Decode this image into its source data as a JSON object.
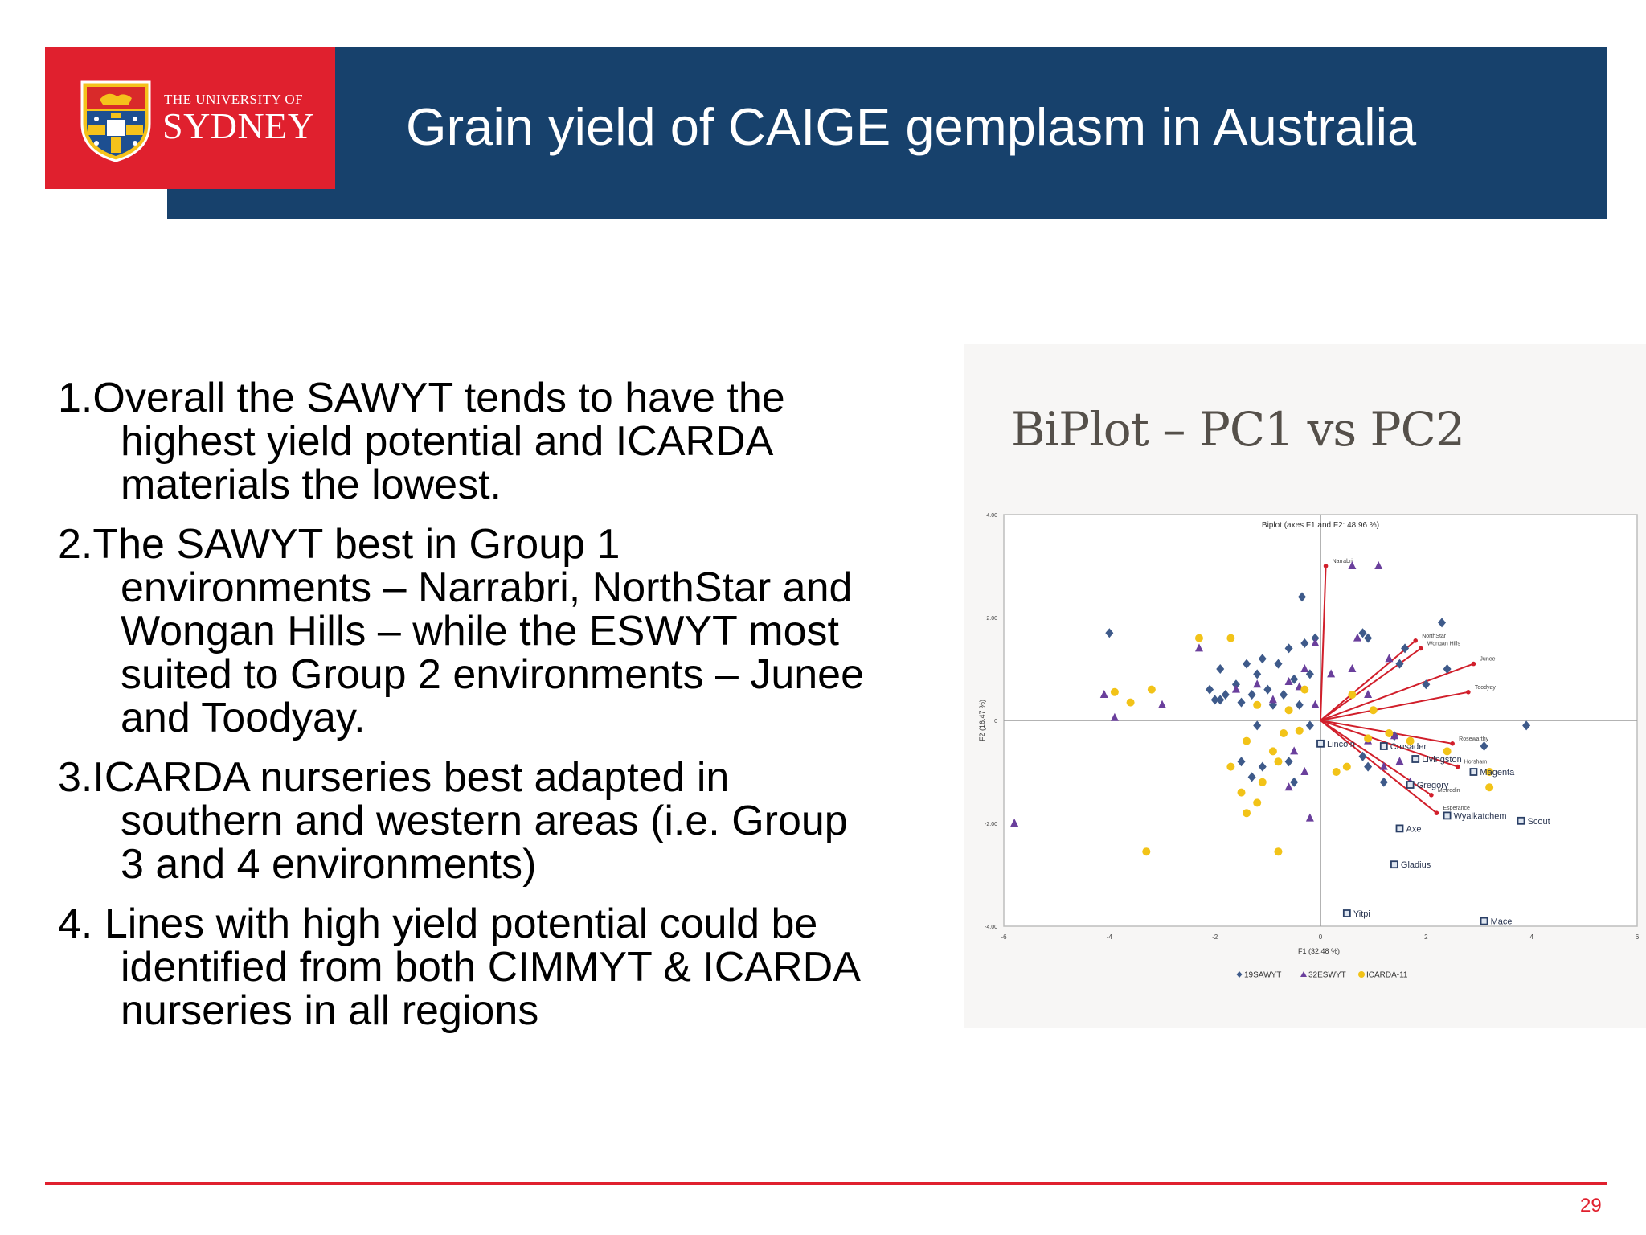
{
  "header": {
    "title": "Grain yield of CAIGE gemplasm in Australia",
    "logo_line1": "THE UNIVERSITY OF",
    "logo_line2": "SYDNEY"
  },
  "bullets": [
    "1.Overall the SAWYT tends to have the highest yield potential and  ICARDA materials the lowest.",
    "2.The SAWYT best in Group 1 environments – Narrabri, NorthStar and Wongan Hills – while the ESWYT most suited to Group 2 environments – Junee and Toodyay.",
    "3.ICARDA nurseries best adapted in southern and western areas (i.e. Group 3 and 4 environments)",
    "4. Lines with high yield potential could be identified from both CIMMYT & ICARDA nurseries in all regions"
  ],
  "chart_heading": "BiPlot – PC1 vs PC2",
  "chart_data": {
    "type": "scatter",
    "title": "Biplot (axes F1 and F2: 48.96 %)",
    "xlabel": "F1 (32.48 %)",
    "ylabel": "F2 (16.47 %)",
    "xlim": [
      -6,
      6
    ],
    "ylim": [
      -4,
      4
    ],
    "x_ticks": [
      "-6",
      "-4",
      "-2",
      "0",
      "2",
      "4",
      "6"
    ],
    "y_ticks": [
      "4.00",
      "2.00",
      "0",
      "-2.00",
      "-4.00"
    ],
    "legend": {
      "position": "bottom",
      "entries": [
        "19SAWYT",
        "32ESWYT",
        "ICARDA-11"
      ]
    },
    "series_style": [
      {
        "label": "19SAWYT",
        "marker": "diamond",
        "color": "#3e5a8a"
      },
      {
        "label": "32ESWYT",
        "marker": "triangle",
        "color": "#6a3f9c"
      },
      {
        "label": "ICARDA-11",
        "marker": "circle",
        "color": "#f2c318"
      }
    ],
    "series": [
      {
        "name": "19SAWYT",
        "points": [
          [
            -4,
            1.7
          ],
          [
            -2.1,
            0.6
          ],
          [
            -2,
            0.4
          ],
          [
            -1.9,
            1.0
          ],
          [
            -1.8,
            0.5
          ],
          [
            -1.6,
            0.7
          ],
          [
            -1.5,
            0.35
          ],
          [
            -1.4,
            1.1
          ],
          [
            -1.3,
            0.5
          ],
          [
            -1.2,
            0.9
          ],
          [
            -1.1,
            1.2
          ],
          [
            -1,
            0.6
          ],
          [
            -0.9,
            0.3
          ],
          [
            -0.8,
            1.1
          ],
          [
            -0.7,
            0.5
          ],
          [
            -0.6,
            1.4
          ],
          [
            -0.5,
            0.8
          ],
          [
            -0.4,
            0.3
          ],
          [
            -0.3,
            1.5
          ],
          [
            -0.2,
            0.9
          ],
          [
            -0.35,
            2.4
          ],
          [
            -0.1,
            1.6
          ],
          [
            -0.2,
            -0.1
          ],
          [
            -0.6,
            -0.8
          ],
          [
            -0.5,
            -1.2
          ],
          [
            -1.1,
            -0.9
          ],
          [
            -1.2,
            -0.1
          ],
          [
            -1.3,
            -1.1
          ],
          [
            -1.5,
            -0.8
          ],
          [
            -1.9,
            0.4
          ],
          [
            0.8,
            1.7
          ],
          [
            0.9,
            1.6
          ],
          [
            1.5,
            1.1
          ],
          [
            1.6,
            1.4
          ],
          [
            2.3,
            1.9
          ],
          [
            2.4,
            1.0
          ],
          [
            2.0,
            0.7
          ],
          [
            0.8,
            -0.7
          ],
          [
            0.9,
            -0.9
          ],
          [
            1.4,
            -0.3
          ],
          [
            1.2,
            -1.2
          ],
          [
            3.1,
            -0.5
          ],
          [
            3.9,
            -0.1
          ]
        ],
        "labels_shown": false
      },
      {
        "name": "32ESWYT",
        "points": [
          [
            -4.1,
            0.5
          ],
          [
            -3.9,
            0.05
          ],
          [
            -3.0,
            0.3
          ],
          [
            -2.3,
            1.4
          ],
          [
            -1.6,
            0.6
          ],
          [
            -1.2,
            0.7
          ],
          [
            -0.9,
            0.4
          ],
          [
            -0.6,
            0.75
          ],
          [
            -0.4,
            0.65
          ],
          [
            -0.3,
            1.0
          ],
          [
            -0.1,
            1.5
          ],
          [
            -0.1,
            0.3
          ],
          [
            0.2,
            0.9
          ],
          [
            0.6,
            1.0
          ],
          [
            0.6,
            3.0
          ],
          [
            1.1,
            3.0
          ],
          [
            0.7,
            1.6
          ],
          [
            0.9,
            0.5
          ],
          [
            1.3,
            1.2
          ],
          [
            1.4,
            -0.3
          ],
          [
            0.9,
            -0.4
          ],
          [
            1.2,
            -0.9
          ],
          [
            1.7,
            -1.2
          ],
          [
            1.5,
            -0.8
          ],
          [
            -0.3,
            -1.0
          ],
          [
            -0.5,
            -0.6
          ],
          [
            -0.2,
            -1.9
          ],
          [
            -0.6,
            -1.3
          ],
          [
            -5.8,
            -2.0
          ]
        ],
        "labels_shown": false
      },
      {
        "name": "ICARDA-11",
        "points": [
          [
            -3.9,
            0.55
          ],
          [
            -3.6,
            0.35
          ],
          [
            -3.2,
            0.6
          ],
          [
            -2.3,
            1.6
          ],
          [
            -1.7,
            1.6
          ],
          [
            -1.7,
            -0.9
          ],
          [
            -1.5,
            -1.4
          ],
          [
            -1.4,
            -1.8
          ],
          [
            -1.2,
            -1.6
          ],
          [
            -1.1,
            -1.2
          ],
          [
            -0.8,
            -0.8
          ],
          [
            -0.7,
            -0.25
          ],
          [
            -0.6,
            0.2
          ],
          [
            -0.4,
            -0.2
          ],
          [
            -0.3,
            0.6
          ],
          [
            -0.9,
            -0.6
          ],
          [
            -1.2,
            0.3
          ],
          [
            -1.4,
            -0.4
          ],
          [
            -3.3,
            -2.55
          ],
          [
            -0.8,
            -2.55
          ],
          [
            0.3,
            -1.0
          ],
          [
            0.5,
            -0.9
          ],
          [
            0.9,
            -0.35
          ],
          [
            1.3,
            -0.25
          ],
          [
            1.7,
            -0.4
          ],
          [
            2.4,
            -0.6
          ],
          [
            3.2,
            -1.0
          ],
          [
            3.2,
            -1.3
          ],
          [
            0.6,
            0.5
          ],
          [
            1.0,
            0.2
          ]
        ],
        "labels_shown": false
      }
    ],
    "vectors": [
      {
        "label": "Narrabri",
        "x": 0.1,
        "y": 3.0
      },
      {
        "label": "NorthStar",
        "x": 1.8,
        "y": 1.55
      },
      {
        "label": "Wongan Hills",
        "x": 1.9,
        "y": 1.4
      },
      {
        "label": "Junee",
        "x": 2.9,
        "y": 1.1
      },
      {
        "label": "Toodyay",
        "x": 2.8,
        "y": 0.55
      },
      {
        "label": "Rosewarthy",
        "x": 2.5,
        "y": -0.45
      },
      {
        "label": "Horsham",
        "x": 2.6,
        "y": -0.9
      },
      {
        "label": "Merredin",
        "x": 2.1,
        "y": -1.45
      },
      {
        "label": "Esperance",
        "x": 2.2,
        "y": -1.8
      }
    ],
    "cultivars": [
      {
        "label": "Lincoln",
        "x": 0,
        "y": -0.45
      },
      {
        "label": "Crusader",
        "x": 1.2,
        "y": -0.5
      },
      {
        "label": "Livingston",
        "x": 1.8,
        "y": -0.75
      },
      {
        "label": "Magenta",
        "x": 2.9,
        "y": -1.0
      },
      {
        "label": "Gregory",
        "x": 1.7,
        "y": -1.25
      },
      {
        "label": "Wyalkatchem",
        "x": 2.4,
        "y": -1.85
      },
      {
        "label": "Scout",
        "x": 3.8,
        "y": -1.95
      },
      {
        "label": "Axe",
        "x": 1.5,
        "y": -2.1
      },
      {
        "label": "Gladius",
        "x": 1.4,
        "y": -2.8
      },
      {
        "label": "Yitpi",
        "x": 0.5,
        "y": -3.75
      },
      {
        "label": "Mace",
        "x": 3.1,
        "y": -3.9
      }
    ]
  },
  "footer": {
    "page_number": "29"
  }
}
